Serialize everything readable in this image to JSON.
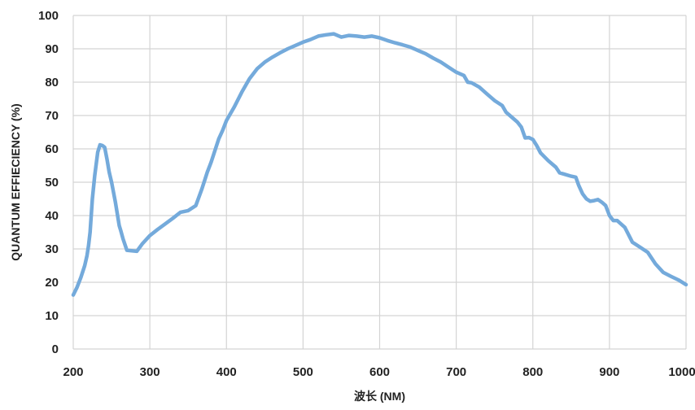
{
  "chart_data": {
    "type": "line",
    "xlabel": "波长 (NM)",
    "ylabel": "QUANTUM EFFIECIENCY (%)",
    "xlim": [
      200,
      1000
    ],
    "ylim": [
      0,
      100
    ],
    "xticks": [
      200,
      300,
      400,
      500,
      600,
      700,
      800,
      900,
      1000
    ],
    "yticks": [
      0,
      10,
      20,
      30,
      40,
      50,
      60,
      70,
      80,
      90,
      100
    ],
    "grid": true,
    "legend": "none",
    "series_color": "#74aadb",
    "series": [
      {
        "x": [
          200,
          205,
          210,
          215,
          218,
          220,
          222,
          225,
          228,
          232,
          235,
          238,
          241,
          244,
          247,
          250,
          255,
          260,
          262,
          265,
          270,
          275,
          283,
          290,
          300,
          310,
          320,
          330,
          340,
          350,
          360,
          368,
          375,
          380,
          385,
          390,
          395,
          400,
          410,
          420,
          430,
          440,
          450,
          460,
          470,
          480,
          490,
          500,
          510,
          520,
          530,
          540,
          550,
          560,
          570,
          580,
          590,
          600,
          610,
          620,
          630,
          640,
          650,
          660,
          670,
          680,
          690,
          700,
          710,
          715,
          720,
          730,
          740,
          750,
          760,
          765,
          770,
          780,
          785,
          790,
          795,
          800,
          805,
          810,
          820,
          830,
          835,
          840,
          850,
          856,
          860,
          865,
          870,
          875,
          880,
          885,
          890,
          895,
          900,
          905,
          910,
          920,
          930,
          940,
          950,
          960,
          970,
          980,
          990,
          1000
        ],
        "y": [
          16.2,
          18.5,
          21.5,
          25,
          28,
          31,
          35,
          45,
          52,
          59,
          61.2,
          61,
          60.5,
          57,
          53,
          50,
          44,
          37,
          35.5,
          33,
          29.6,
          29.5,
          29.3,
          31.5,
          34,
          35.8,
          37.5,
          39.2,
          41,
          41.5,
          43,
          48,
          53,
          56,
          59.5,
          63,
          65.5,
          68.5,
          72.5,
          77,
          81,
          84,
          86,
          87.5,
          88.8,
          90,
          91,
          92,
          92.8,
          93.8,
          94.2,
          94.5,
          93.5,
          94,
          93.8,
          93.5,
          93.8,
          93.3,
          92.5,
          91.8,
          91.2,
          90.5,
          89.5,
          88.5,
          87.2,
          86,
          84.5,
          83,
          82,
          80,
          79.8,
          78.5,
          76.5,
          74.5,
          73,
          71,
          70,
          68,
          66.5,
          63.3,
          63.4,
          62.8,
          61,
          58.8,
          56.5,
          54.5,
          52.8,
          52.5,
          51.8,
          51.5,
          49,
          46.5,
          45,
          44.3,
          44.5,
          44.8,
          44,
          43,
          40,
          38.5,
          38.5,
          36.5,
          32,
          30.5,
          29,
          25.5,
          23,
          21.8,
          20.7,
          19.3
        ]
      }
    ]
  }
}
